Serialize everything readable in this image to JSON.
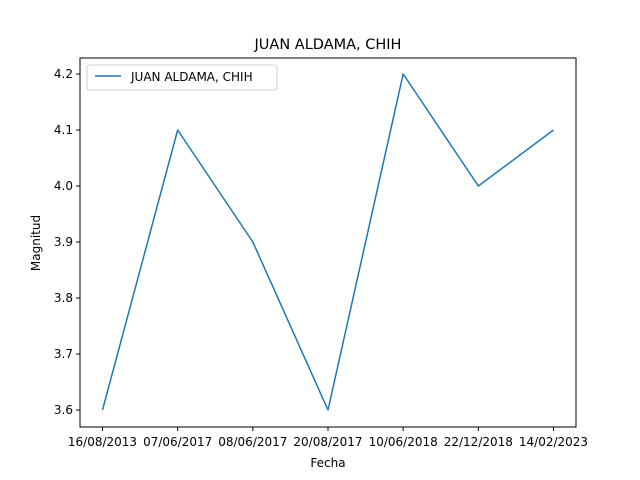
{
  "chart_data": {
    "type": "line",
    "title": "JUAN ALDAMA, CHIH",
    "xlabel": "Fecha",
    "ylabel": "Magnitud",
    "categories": [
      "16/08/2013",
      "07/06/2017",
      "08/06/2017",
      "20/08/2017",
      "10/06/2018",
      "22/12/2018",
      "14/02/2023"
    ],
    "series": [
      {
        "name": "JUAN ALDAMA, CHIH",
        "color": "#1f77b4",
        "values": [
          3.6,
          4.1,
          3.9,
          3.6,
          4.2,
          4.0,
          4.1
        ]
      }
    ],
    "ylim": [
      3.57,
      4.23
    ],
    "yticks": [
      "3.6",
      "3.7",
      "3.8",
      "3.9",
      "4.0",
      "4.1",
      "4.2"
    ],
    "grid": false,
    "legend_position": "upper-left"
  }
}
